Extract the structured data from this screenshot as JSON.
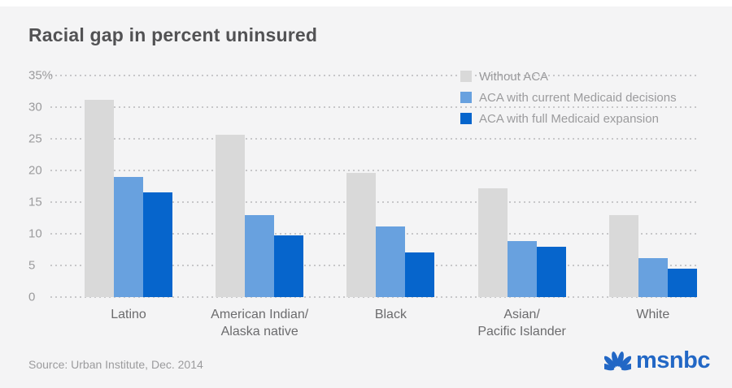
{
  "title": "Racial gap in percent uninsured",
  "source": "Source: Urban Institute, Dec. 2014",
  "logo": {
    "brand": "msnbc",
    "icon": "nbc-peacock-icon",
    "color": "#2267c5"
  },
  "colors": {
    "background": "#f4f4f5",
    "top_strip": "#ffffff",
    "grid": "#c7c7c9",
    "title_text": "#525254",
    "axis_text": "#9b9b9d",
    "category_text": "#6b6b6d",
    "bar_without_aca": "#d9d9d9",
    "bar_current_medicaid": "#68a1df",
    "bar_full_expansion": "#0665cc"
  },
  "chart_data": {
    "type": "bar",
    "title": "Racial gap in percent uninsured",
    "categories": [
      "Latino",
      "American Indian/\nAlaska native",
      "Black",
      "Asian/\nPacific Islander",
      "White"
    ],
    "series": [
      {
        "name": "Without ACA",
        "color": "#d9d9d9",
        "values": [
          31.2,
          25.7,
          19.6,
          17.2,
          13.0
        ]
      },
      {
        "name": "ACA with current Medicaid decisions",
        "color": "#68a1df",
        "values": [
          19.0,
          12.9,
          11.2,
          8.8,
          6.2
        ]
      },
      {
        "name": "ACA with full Medicaid expansion",
        "color": "#0665cc",
        "values": [
          16.5,
          9.8,
          7.1,
          7.9,
          4.5
        ]
      }
    ],
    "ylabel": "",
    "xlabel": "",
    "ylim": [
      0,
      35
    ],
    "yticks": [
      {
        "value": 35,
        "label": "35%"
      },
      {
        "value": 30,
        "label": "30"
      },
      {
        "value": 25,
        "label": "25"
      },
      {
        "value": 20,
        "label": "20"
      },
      {
        "value": 15,
        "label": "15"
      },
      {
        "value": 10,
        "label": "10"
      },
      {
        "value": 5,
        "label": "5"
      },
      {
        "value": 0,
        "label": "0"
      }
    ],
    "grid": "horizontal-dotted",
    "legend_position": "top-right"
  }
}
